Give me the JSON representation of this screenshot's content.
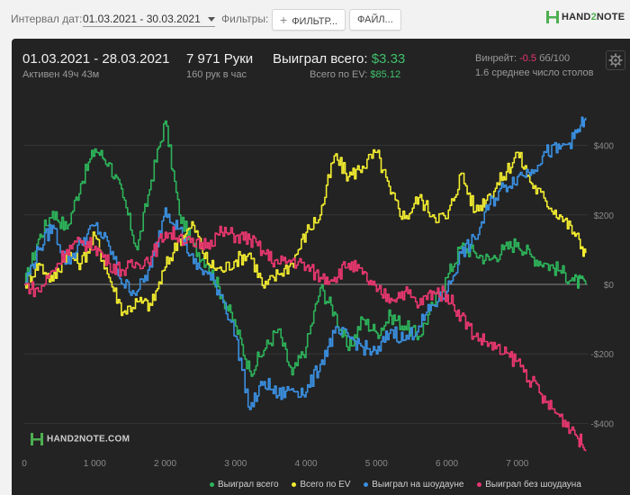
{
  "toolbar": {
    "interval_label": "Интервал дат:",
    "interval_value": "01.03.2021 - 30.03.2021",
    "filters_label": "Фильтры:",
    "filter_button": "ФИЛЬТР...",
    "file_button": "ФАЙЛ...",
    "brand": {
      "main": "HAND",
      "accent": "2",
      "tail": "NOTE"
    }
  },
  "summary": {
    "period": "01.03.2021 - 28.03.2021",
    "active": "Активен 49ч 43м",
    "hands": "7 971 Руки",
    "hands_per_hour": "160 рук в час",
    "won_label": "Выиграл всего:",
    "won_value": "$3.33",
    "ev_label": "Всего по EV:",
    "ev_value": "$85.12",
    "winrate_label": "Винрейт:",
    "winrate_value": "-0.5",
    "winrate_unit": "бб/100",
    "avg_tables": "1.6 среднее число столов"
  },
  "watermark": {
    "main": "HAND",
    "accent": "2",
    "tail": "NOTE.COM"
  },
  "colors": {
    "won": "#2db35a",
    "ev": "#f2ec2f",
    "showdown": "#3a8fe0",
    "nonshowdown": "#e8376f",
    "grid": "#3a3a3a",
    "zero": "#8a8a8a"
  },
  "chart_data": {
    "type": "line",
    "xlabel": "",
    "ylabel": "",
    "xlim": [
      0,
      8000
    ],
    "ylim": [
      -500,
      500
    ],
    "x_ticks": [
      0,
      1000,
      2000,
      3000,
      4000,
      5000,
      6000,
      7000
    ],
    "x_tick_labels": [
      "0",
      "1 000",
      "2 000",
      "3 000",
      "4 000",
      "5 000",
      "6 000",
      "7 000"
    ],
    "y_ticks": [
      400,
      200,
      0,
      -200,
      -400
    ],
    "y_tick_labels": [
      "$400",
      "$200",
      "$0",
      "-$200",
      "-$400"
    ],
    "grid": true,
    "legend_position": "bottom",
    "x": [
      0,
      200,
      400,
      600,
      800,
      1000,
      1200,
      1400,
      1600,
      1800,
      2000,
      2200,
      2400,
      2600,
      2800,
      3000,
      3200,
      3400,
      3600,
      3800,
      4000,
      4200,
      4400,
      4600,
      4800,
      5000,
      5200,
      5400,
      5600,
      5800,
      6000,
      6200,
      6400,
      6600,
      6800,
      7000,
      7200,
      7400,
      7600,
      7800,
      7971
    ],
    "series": [
      {
        "name": "Выиграл всего",
        "color_key": "won",
        "values": [
          0,
          130,
          210,
          160,
          290,
          390,
          350,
          250,
          100,
          300,
          470,
          200,
          110,
          60,
          -30,
          -120,
          -250,
          -190,
          -130,
          -260,
          -180,
          -10,
          -80,
          -190,
          -100,
          -140,
          -90,
          -120,
          -150,
          -60,
          20,
          110,
          90,
          70,
          100,
          120,
          80,
          60,
          40,
          10,
          0
        ]
      },
      {
        "name": "Всего по EV",
        "color_key": "ev",
        "values": [
          0,
          60,
          10,
          90,
          60,
          140,
          20,
          -80,
          -50,
          -60,
          50,
          130,
          170,
          60,
          40,
          70,
          90,
          -10,
          30,
          60,
          150,
          200,
          370,
          310,
          340,
          380,
          260,
          190,
          250,
          200,
          190,
          320,
          210,
          260,
          310,
          380,
          290,
          240,
          200,
          150,
          90
        ]
      },
      {
        "name": "Выиграл на шоудауне",
        "color_key": "showdown",
        "values": [
          0,
          100,
          170,
          60,
          120,
          170,
          110,
          0,
          -20,
          50,
          220,
          160,
          60,
          30,
          -30,
          -150,
          -360,
          -280,
          -320,
          -300,
          -310,
          -230,
          -140,
          -150,
          -180,
          -200,
          -130,
          -160,
          -120,
          -60,
          -20,
          90,
          130,
          230,
          280,
          310,
          330,
          380,
          390,
          420,
          480
        ]
      },
      {
        "name": "Выиграл без шоудауна",
        "color_key": "nonshowdown",
        "values": [
          0,
          -20,
          40,
          100,
          120,
          110,
          60,
          40,
          60,
          80,
          150,
          140,
          110,
          120,
          150,
          140,
          130,
          90,
          60,
          70,
          50,
          20,
          20,
          60,
          30,
          -20,
          -40,
          -20,
          -60,
          -20,
          -30,
          -90,
          -150,
          -170,
          -200,
          -220,
          -280,
          -340,
          -380,
          -420,
          -480
        ]
      }
    ]
  }
}
